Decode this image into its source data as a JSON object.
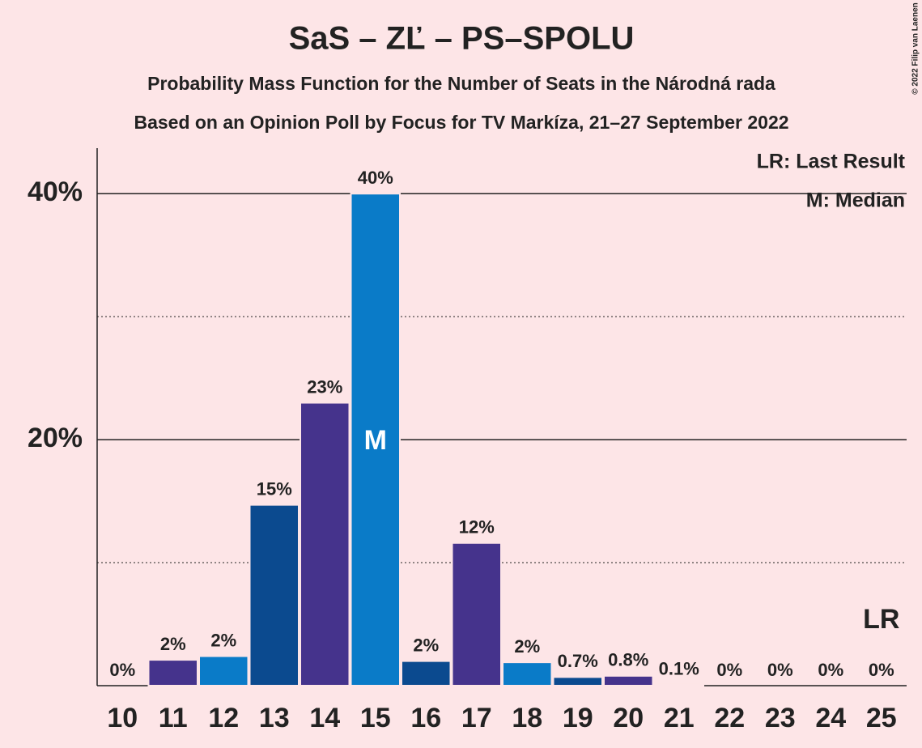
{
  "chart_data": {
    "type": "bar",
    "title": "SaS – ZĽ – PS–SPOLU",
    "subtitle": "Probability Mass Function for the Number of Seats in the Národná rada",
    "subtitle2": "Based on an Opinion Poll by Focus for TV Markíza, 21–27 September 2022",
    "copyright": "© 2022 Filip van Laenen",
    "categories": [
      10,
      11,
      12,
      13,
      14,
      15,
      16,
      17,
      18,
      19,
      20,
      21,
      22,
      23,
      24,
      25
    ],
    "values": [
      0,
      2.1,
      2.4,
      14.7,
      23,
      40,
      2.0,
      11.6,
      1.9,
      0.7,
      0.8,
      0.1,
      0,
      0,
      0,
      0
    ],
    "value_labels": [
      "0%",
      "2%",
      "2%",
      "15%",
      "23%",
      "40%",
      "2%",
      "12%",
      "2%",
      "0.7%",
      "0.8%",
      "0.1%",
      "0%",
      "0%",
      "0%",
      "0%"
    ],
    "colors": [
      "#0b4a8f",
      "#45338c",
      "#0a7bc8",
      "#0b4a8f",
      "#45338c",
      "#0a7bc8",
      "#0b4a8f",
      "#45338c",
      "#0a7bc8",
      "#0b4a8f",
      "#45338c",
      "#0a7bc8",
      "#0b4a8f",
      "#45338c",
      "#0a7bc8",
      "#0b4a8f"
    ],
    "ylim": [
      0,
      43.7
    ],
    "yticks": [
      {
        "value": 20,
        "label": "20%"
      },
      {
        "value": 40,
        "label": "40%"
      }
    ],
    "minor_grid": [
      10,
      30
    ],
    "grid": true,
    "median": 15,
    "median_label": "M",
    "last_result": 25,
    "last_result_label": "LR",
    "legend": [
      "LR: Last Result",
      "M: Median"
    ],
    "legend_position": "top-right"
  }
}
